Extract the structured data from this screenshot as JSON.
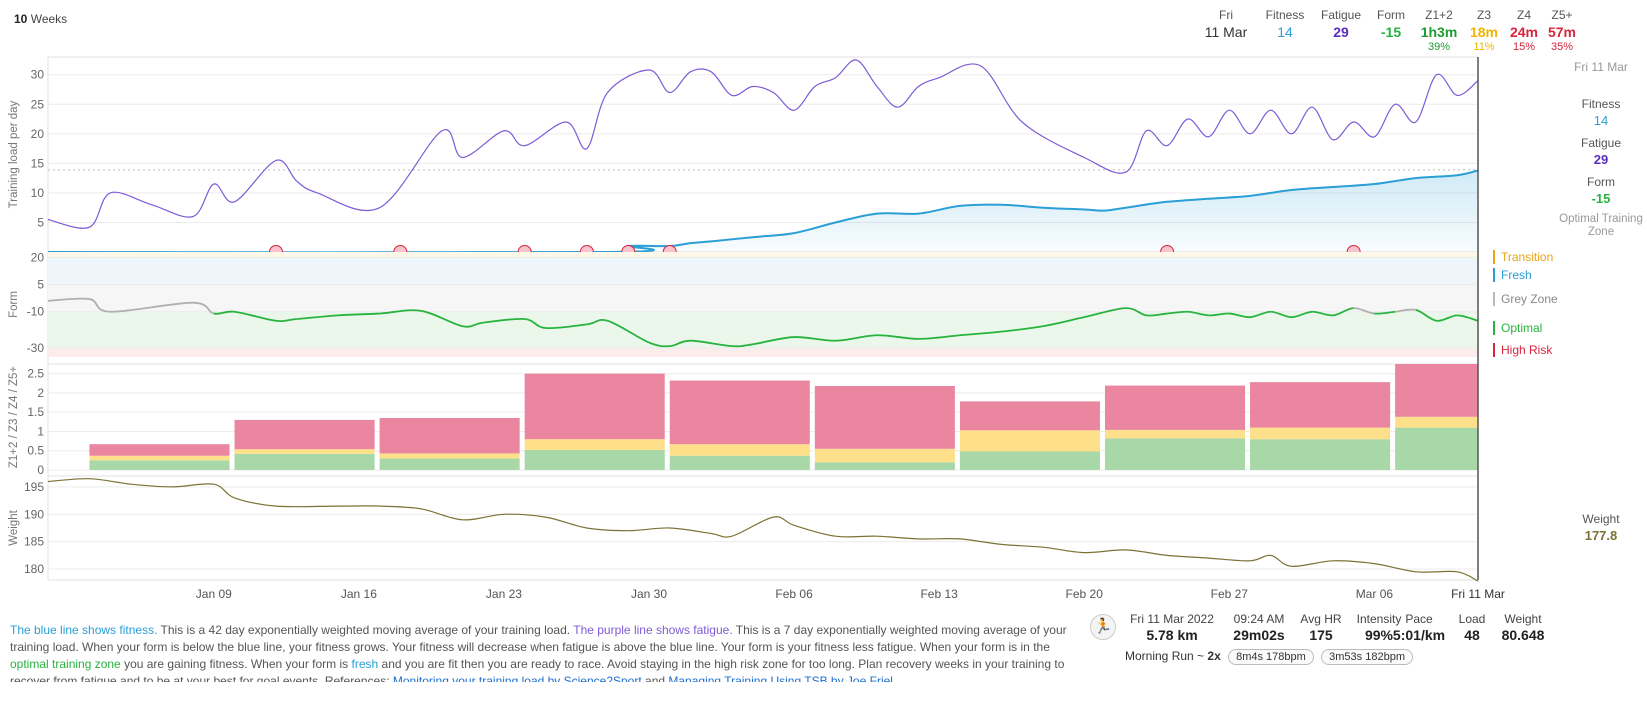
{
  "range": {
    "count": "10",
    "unit": "Weeks"
  },
  "colors": {
    "fitness": "#2a9fd6",
    "fatigue": "#7e5bd6",
    "form_optimal": "#28b33f",
    "form_grey": "#b0b0b0",
    "z12": "#a8d8a8",
    "z3": "#ffe08a",
    "z4": "#e97f9b",
    "weight": "#7b7234",
    "transition": "#e8a317",
    "fresh": "#2a9fd6",
    "greyzone": "#888888",
    "highrisk": "#d8243c"
  },
  "summary": {
    "date_day": "Fri",
    "date": "11 Mar",
    "fitness_label": "Fitness",
    "fitness": "14",
    "fatigue_label": "Fatigue",
    "fatigue": "29",
    "form_label": "Form",
    "form": "-15",
    "z12_label": "Z1+2",
    "z12": "1h3m",
    "z12_pct": "39%",
    "z3_label": "Z3",
    "z3": "18m",
    "z3_pct": "11%",
    "z4_label": "Z4",
    "z4": "24m",
    "z4_pct": "15%",
    "z5_label": "Z5+",
    "z5": "57m",
    "z5_pct": "35%"
  },
  "right_panel": {
    "date": "Fri 11 Mar",
    "fitness_label": "Fitness",
    "fitness": "14",
    "fatigue_label": "Fatigue",
    "fatigue": "29",
    "form_label": "Form",
    "form": "-15",
    "zone_label": "Optimal Training Zone",
    "zones": {
      "transition": "Transition",
      "fresh": "Fresh",
      "grey": "Grey Zone",
      "optimal": "Optimal",
      "high_risk": "High Risk"
    },
    "weight_label": "Weight",
    "weight": "177.8"
  },
  "chart_data": [
    {
      "type": "line",
      "ylabel": "Training load per day",
      "ylim": [
        0,
        33
      ],
      "yticks": [
        5,
        10,
        15,
        20,
        25,
        30
      ],
      "x_start": "2022-01-01",
      "x_end": "2022-03-11",
      "x_ticks": [
        "Jan 09",
        "Jan 16",
        "Jan 23",
        "Jan 30",
        "Feb 06",
        "Feb 13",
        "Feb 20",
        "Feb 27",
        "Mar 06",
        "Fri 11 Mar"
      ],
      "reference_line": 13.9,
      "series": [
        {
          "name": "Fatigue",
          "x": [
            "2022-01-01",
            "2022-01-03",
            "2022-01-04",
            "2022-01-06",
            "2022-01-08",
            "2022-01-09",
            "2022-01-10",
            "2022-01-12",
            "2022-01-13",
            "2022-01-14",
            "2022-01-17",
            "2022-01-20",
            "2022-01-21",
            "2022-01-23",
            "2022-01-24",
            "2022-01-26",
            "2022-01-27",
            "2022-01-28",
            "2022-01-30",
            "2022-01-31",
            "2022-02-01",
            "2022-02-02",
            "2022-02-03",
            "2022-02-04",
            "2022-02-05",
            "2022-02-06",
            "2022-02-07",
            "2022-02-08",
            "2022-02-09",
            "2022-02-10",
            "2022-02-11",
            "2022-02-12",
            "2022-02-13",
            "2022-02-15",
            "2022-02-17",
            "2022-02-20",
            "2022-02-22",
            "2022-02-23",
            "2022-02-24",
            "2022-02-25",
            "2022-02-26",
            "2022-02-27",
            "2022-02-28",
            "2022-03-01",
            "2022-03-02",
            "2022-03-03",
            "2022-03-04",
            "2022-03-05",
            "2022-03-06",
            "2022-03-07",
            "2022-03-08",
            "2022-03-09",
            "2022-03-10",
            "2022-03-11"
          ],
          "y": [
            5.5,
            4.2,
            10,
            8,
            6,
            11.5,
            8.5,
            15.5,
            12,
            10,
            7.5,
            20.5,
            16,
            20.5,
            18,
            22,
            17.5,
            27,
            30.8,
            27,
            30.5,
            30.5,
            26.5,
            28,
            27,
            24,
            28,
            29.5,
            32.5,
            28,
            24.5,
            28,
            29.5,
            31.5,
            22,
            16,
            13.5,
            20.5,
            18,
            22.5,
            19.5,
            24,
            20,
            24,
            20,
            24.5,
            19,
            22,
            19.5,
            25,
            22,
            30,
            26.5,
            29
          ]
        },
        {
          "name": "Fitness",
          "x": [
            "2022-01-01",
            "2022-01-28",
            "2022-01-29",
            "2022-01-31",
            "2022-02-01",
            "2022-02-02",
            "2022-02-04",
            "2022-02-06",
            "2022-02-08",
            "2022-02-10",
            "2022-02-12",
            "2022-02-14",
            "2022-02-16",
            "2022-02-18",
            "2022-02-20",
            "2022-02-21",
            "2022-02-22",
            "2022-02-24",
            "2022-02-26",
            "2022-02-28",
            "2022-03-02",
            "2022-03-04",
            "2022-03-06",
            "2022-03-08",
            "2022-03-10",
            "2022-03-11"
          ],
          "y": [
            0,
            0,
            1,
            1,
            1.5,
            1.8,
            2.5,
            3.2,
            5,
            6.5,
            6.5,
            7.8,
            8,
            7.5,
            7.2,
            7,
            7.5,
            8.5,
            9,
            9.5,
            10.5,
            11,
            11.5,
            12.5,
            13,
            13.8
          ]
        }
      ],
      "markers_x": [
        "2022-01-12",
        "2022-01-18",
        "2022-01-24",
        "2022-01-27",
        "2022-01-29",
        "2022-01-31",
        "2022-02-24",
        "2022-03-05"
      ]
    },
    {
      "type": "line",
      "ylabel": "Form",
      "ylim": [
        -35,
        23
      ],
      "yticks": [
        20,
        5,
        -10,
        -30
      ],
      "bands": [
        {
          "from": 20,
          "to": 23,
          "name": "Transition"
        },
        {
          "from": 5,
          "to": 20,
          "name": "Fresh"
        },
        {
          "from": -10,
          "to": 5,
          "name": "Grey Zone"
        },
        {
          "from": -30,
          "to": -10,
          "name": "Optimal"
        },
        {
          "from": -35,
          "to": -30,
          "name": "High Risk"
        }
      ],
      "series": [
        {
          "name": "Form",
          "x": [
            "2022-01-01",
            "2022-01-03",
            "2022-01-04",
            "2022-01-08",
            "2022-01-09",
            "2022-01-10",
            "2022-01-12",
            "2022-01-13",
            "2022-01-15",
            "2022-01-17",
            "2022-01-19",
            "2022-01-21",
            "2022-01-22",
            "2022-01-24",
            "2022-01-25",
            "2022-01-27",
            "2022-01-28",
            "2022-01-30",
            "2022-01-31",
            "2022-02-01",
            "2022-02-03",
            "2022-02-04",
            "2022-02-06",
            "2022-02-08",
            "2022-02-10",
            "2022-02-12",
            "2022-02-14",
            "2022-02-16",
            "2022-02-18",
            "2022-02-20",
            "2022-02-22",
            "2022-02-23",
            "2022-02-24",
            "2022-02-25",
            "2022-02-26",
            "2022-02-27",
            "2022-02-28",
            "2022-03-01",
            "2022-03-02",
            "2022-03-03",
            "2022-03-04",
            "2022-03-05",
            "2022-03-06",
            "2022-03-07",
            "2022-03-08",
            "2022-03-09",
            "2022-03-10",
            "2022-03-11"
          ],
          "y": [
            -4,
            -3,
            -10,
            -5,
            -11,
            -10,
            -15,
            -14,
            -12,
            -11,
            -9.5,
            -18,
            -16,
            -14,
            -19,
            -17,
            -15,
            -27,
            -29,
            -26,
            -29,
            -28,
            -24,
            -26,
            -23,
            -25,
            -23,
            -21,
            -18,
            -13,
            -8,
            -12,
            -11,
            -10,
            -12,
            -11,
            -13,
            -10,
            -13,
            -10,
            -12,
            -8,
            -11,
            -10,
            -9,
            -15,
            -12,
            -15
          ]
        }
      ]
    },
    {
      "type": "bar",
      "ylabel": "Z1+2 / Z3 / Z4 / Z5+",
      "ylim": [
        0,
        2.75
      ],
      "yticks": [
        0,
        0.5,
        1,
        1.5,
        2,
        2.5
      ],
      "bar_weeks": [
        "2022-01-03",
        "2022-01-10",
        "2022-01-17",
        "2022-01-24",
        "2022-01-31",
        "2022-02-07",
        "2022-02-14",
        "2022-02-21",
        "2022-02-28",
        "2022-03-07"
      ],
      "series": [
        {
          "name": "Z1+2",
          "values": [
            0.25,
            0.42,
            0.3,
            0.52,
            0.37,
            0.2,
            0.48,
            0.82,
            0.8,
            1.1
          ]
        },
        {
          "name": "Z3",
          "values": [
            0.12,
            0.12,
            0.13,
            0.28,
            0.3,
            0.35,
            0.55,
            0.22,
            0.3,
            0.28
          ]
        },
        {
          "name": "Z4+Z5",
          "values": [
            0.3,
            0.76,
            0.92,
            1.7,
            1.65,
            1.63,
            0.75,
            1.15,
            1.18,
            1.37
          ]
        }
      ]
    },
    {
      "type": "line",
      "ylabel": "Weight",
      "ylim": [
        178,
        197
      ],
      "yticks": [
        180,
        185,
        190,
        195
      ],
      "series": [
        {
          "name": "Weight",
          "x": [
            "2022-01-01",
            "2022-01-03",
            "2022-01-05",
            "2022-01-07",
            "2022-01-09",
            "2022-01-10",
            "2022-01-12",
            "2022-01-15",
            "2022-01-17",
            "2022-01-19",
            "2022-01-21",
            "2022-01-23",
            "2022-01-25",
            "2022-01-27",
            "2022-01-29",
            "2022-01-31",
            "2022-02-02",
            "2022-02-03",
            "2022-02-05",
            "2022-02-06",
            "2022-02-08",
            "2022-02-10",
            "2022-02-12",
            "2022-02-14",
            "2022-02-16",
            "2022-02-18",
            "2022-02-20",
            "2022-02-22",
            "2022-02-24",
            "2022-02-26",
            "2022-02-28",
            "2022-03-01",
            "2022-03-02",
            "2022-03-04",
            "2022-03-06",
            "2022-03-08",
            "2022-03-10",
            "2022-03-11"
          ],
          "y": [
            196,
            196.5,
            195.5,
            195,
            195.5,
            193,
            191.5,
            191.5,
            191.5,
            191,
            189,
            190,
            189.5,
            187.5,
            187,
            187.5,
            186.5,
            186,
            189.5,
            188,
            186,
            186,
            185.5,
            185.5,
            184.5,
            184,
            183,
            183.5,
            182.5,
            182,
            181.5,
            182.5,
            180.5,
            181.5,
            181,
            179.5,
            179.5,
            177.8
          ]
        }
      ]
    }
  ],
  "description": {
    "s1": "The blue line shows fitness.",
    "s2": " This is a 42 day exponentially weighted moving average of your training load. ",
    "s3": "The purple line shows fatigue.",
    "s4": " This is a 7 day exponentially weighted moving average of your training load. When your form is below the blue line, your fitness grows. Your fitness will decrease when fatigue is",
    "s5": " above the blue line. Your form is your fitness less fatigue. When your form is in the ",
    "s6": "optimal training zone",
    "s7": " you are gaining fitness. When your form is ",
    "s8": "fresh",
    "s9": " and you are fit then you are ready to race. Avoid staying in the high risk zone for too long. Plan recovery",
    "s10": " weeks in your training to recover from fatigue and to be at your best for goal events. References: ",
    "link1": "Monitoring your training load by Science2Sport",
    "s11": " and ",
    "link2": "Managing Training Using TSB by Joe Friel"
  },
  "activity": {
    "icon": "running-icon",
    "date_label": "Fri 11 Mar 2022",
    "distance": "5.78 km",
    "time_label": "09:24 AM",
    "duration": "29m02s",
    "hr_label": "Avg HR",
    "hr": "175",
    "intensity_label": "Intensity",
    "intensity": "99%",
    "pace_label": "Pace",
    "pace": "5:01/km",
    "load_label": "Load",
    "load": "48",
    "weight_label": "Weight",
    "weight": "80.648",
    "name": "Morning Run ~",
    "reps": "2x",
    "interval1": "8m4s 178bpm",
    "interval2": "3m53s 182bpm"
  }
}
